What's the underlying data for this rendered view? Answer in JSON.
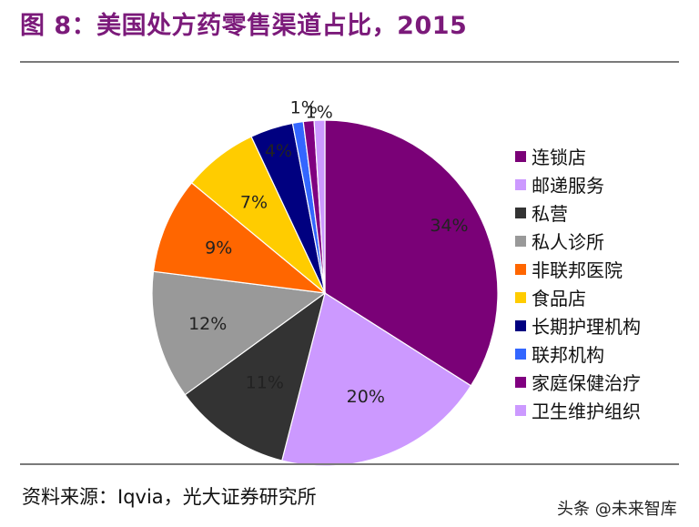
{
  "header": {
    "title": "图 8：美国处方药零售渠道占比，2015"
  },
  "footer": {
    "source": "资料来源：Iqvia，光大证券研究所",
    "watermark": "头条 @未来智库"
  },
  "chart_data": {
    "type": "pie",
    "title": "图 8：美国处方药零售渠道占比，2015",
    "legend_position": "right",
    "start_angle_deg": 0,
    "direction": "clockwise",
    "slices": [
      {
        "label": "连锁店",
        "value": 34,
        "display": "34%",
        "color": "#7a0177"
      },
      {
        "label": "邮递服务",
        "value": 20,
        "display": "20%",
        "color": "#cc99ff"
      },
      {
        "label": "私营",
        "value": 11,
        "display": "11%",
        "color": "#333333"
      },
      {
        "label": "私人诊所",
        "value": 12,
        "display": "12%",
        "color": "#999999"
      },
      {
        "label": "非联邦医院",
        "value": 9,
        "display": "9%",
        "color": "#ff6600"
      },
      {
        "label": "食品店",
        "value": 7,
        "display": "7%",
        "color": "#ffcc00"
      },
      {
        "label": "长期护理机构",
        "value": 4,
        "display": "4%",
        "color": "#000080"
      },
      {
        "label": "联邦机构",
        "value": 1,
        "display": "",
        "color": "#3366ff"
      },
      {
        "label": "家庭保健治疗",
        "value": 1,
        "display": "1%",
        "color": "#800080"
      },
      {
        "label": "卫生维护组织",
        "value": 1,
        "display": "1%",
        "color": "#cc99ff"
      }
    ]
  }
}
